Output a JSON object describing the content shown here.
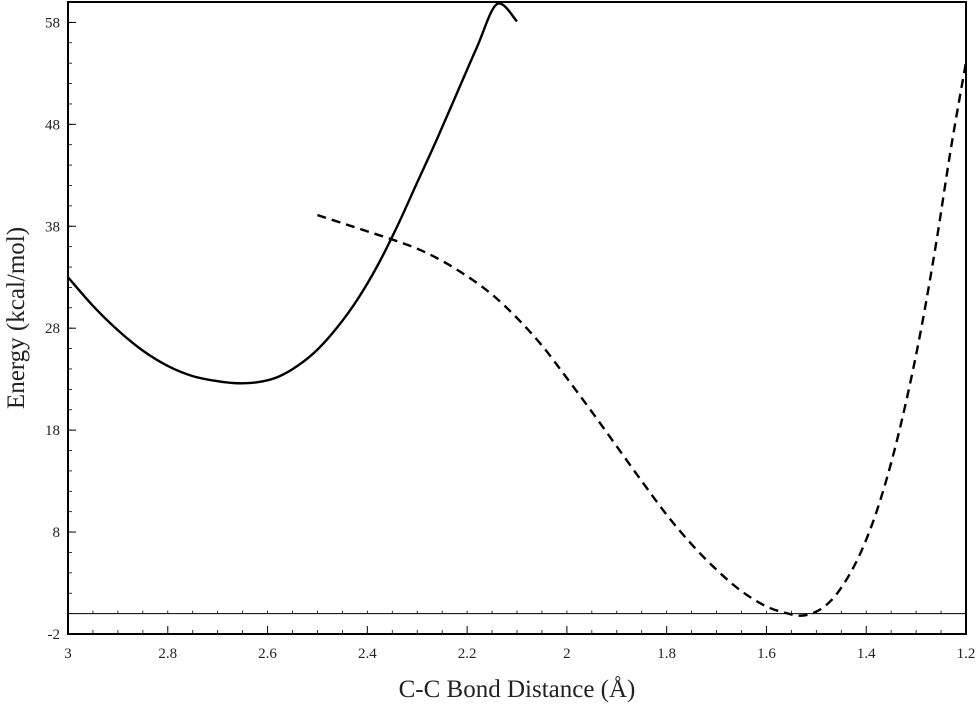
{
  "chart_data": {
    "type": "line",
    "title": "",
    "xlabel": "C-C Bond Distance (Å)",
    "ylabel": "Energy (kcal/mol)",
    "xlim": [
      3,
      1.2
    ],
    "ylim": [
      -2,
      60
    ],
    "x_reversed": true,
    "x_ticks": [
      3,
      2.8,
      2.6,
      2.4,
      2.2,
      2,
      1.8,
      1.6,
      1.4,
      1.2
    ],
    "x_tick_labels": [
      "3",
      "2.8",
      "2.6",
      "2.4",
      "2.2",
      "2",
      "1.8",
      "1.6",
      "1.4",
      "1.2"
    ],
    "y_ticks": [
      -2,
      8,
      18,
      28,
      38,
      48,
      58
    ],
    "y_tick_labels": [
      "-2",
      "8",
      "18",
      "28",
      "38",
      "48",
      "58"
    ],
    "grid": false,
    "reference_line_y": 0,
    "series": [
      {
        "style": "solid",
        "color": "#000000",
        "x": [
          3.0,
          2.95,
          2.9,
          2.85,
          2.8,
          2.75,
          2.7,
          2.66,
          2.62,
          2.58,
          2.54,
          2.5,
          2.46,
          2.42,
          2.38,
          2.34,
          2.3,
          2.26,
          2.22,
          2.18,
          2.14,
          2.1
        ],
        "y": [
          33,
          30.2,
          27.8,
          25.8,
          24.3,
          23.3,
          22.8,
          22.6,
          22.7,
          23.2,
          24.3,
          25.9,
          28.1,
          30.8,
          34.1,
          38.0,
          42.3,
          46.6,
          51.1,
          55.6,
          59.8,
          58.1
        ]
      },
      {
        "style": "dashed",
        "color": "#000000",
        "x": [
          2.5,
          2.45,
          2.4,
          2.35,
          2.3,
          2.25,
          2.2,
          2.15,
          2.1,
          2.05,
          2.0,
          1.95,
          1.9,
          1.85,
          1.8,
          1.75,
          1.7,
          1.65,
          1.6,
          1.56,
          1.53,
          1.5,
          1.47,
          1.44,
          1.41,
          1.38,
          1.35,
          1.32,
          1.29,
          1.26,
          1.23,
          1.2
        ],
        "y": [
          39.1,
          38.3,
          37.5,
          36.7,
          35.8,
          34.6,
          33.1,
          31.3,
          29.0,
          26.3,
          23.1,
          19.8,
          16.4,
          13.0,
          9.7,
          6.8,
          4.3,
          2.2,
          0.7,
          0.05,
          -0.2,
          0.2,
          1.3,
          3.3,
          6.1,
          9.9,
          14.8,
          20.8,
          27.9,
          36.3,
          45.7,
          54.1
        ]
      }
    ]
  }
}
